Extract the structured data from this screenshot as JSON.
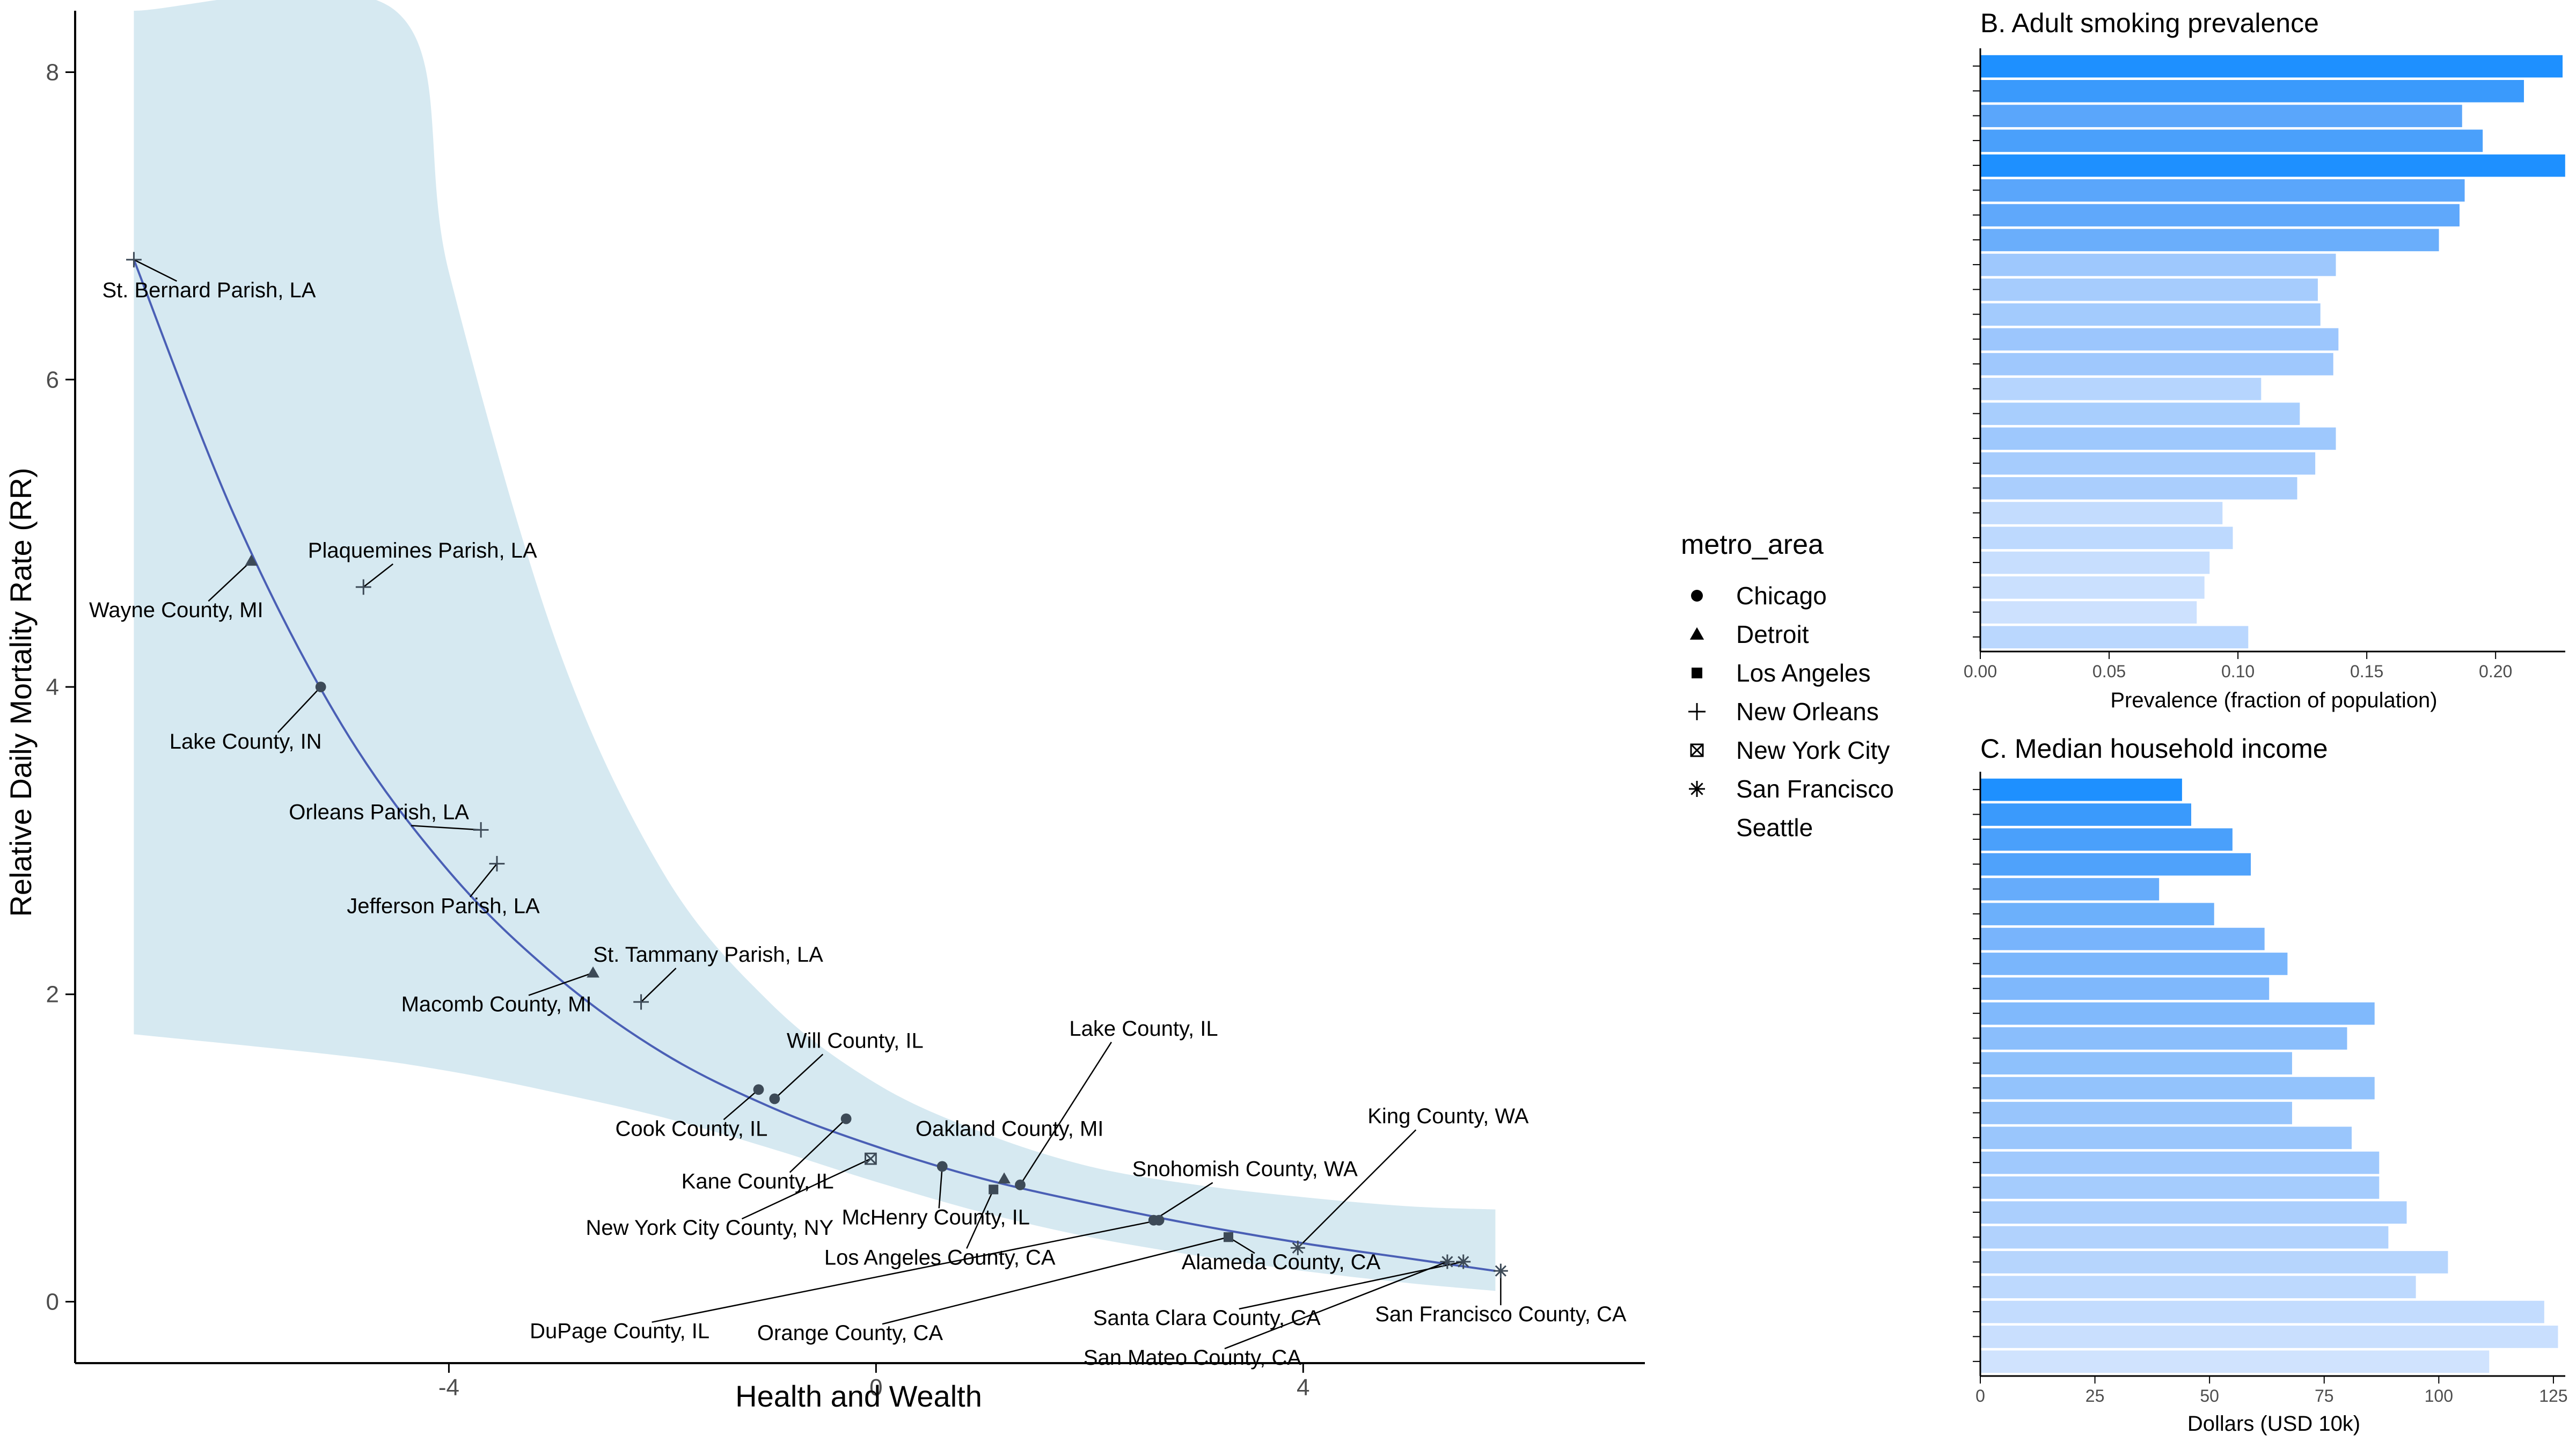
{
  "chart_data": [
    {
      "type": "scatter",
      "xlabel": "Health and Wealth",
      "ylabel": "Relative Daily Mortality Rate (RR)",
      "xlim": [
        -7.5,
        7.2
      ],
      "ylim": [
        -0.4,
        8.4
      ],
      "x_ticks": [
        -4,
        0,
        4
      ],
      "x_tick_labels": [
        "-4",
        "0",
        "4"
      ],
      "y_ticks": [
        0,
        2,
        4,
        6,
        8
      ],
      "y_tick_labels": [
        "0",
        "2",
        "4",
        "6",
        "8"
      ],
      "fit_line_color": "#4a5fb5",
      "band_color": "#d6e9f1",
      "point_color": "#3d4a57",
      "legend": {
        "title": "metro_area",
        "entries": [
          {
            "label": "Chicago",
            "shape": "circle"
          },
          {
            "label": "Detroit",
            "shape": "triangle"
          },
          {
            "label": "Los Angeles",
            "shape": "square"
          },
          {
            "label": "New Orleans",
            "shape": "plus"
          },
          {
            "label": "New York City",
            "shape": "boxed-x"
          },
          {
            "label": "San Francisco",
            "shape": "asterisk"
          },
          {
            "label": "Seattle",
            "shape": "none"
          }
        ]
      },
      "fit_curve": [
        [
          -6.95,
          6.78
        ],
        [
          -6,
          5.1
        ],
        [
          -5,
          3.75
        ],
        [
          -4,
          2.8
        ],
        [
          -3,
          2.12
        ],
        [
          -2,
          1.62
        ],
        [
          -1,
          1.27
        ],
        [
          0,
          1.01
        ],
        [
          1,
          0.8
        ],
        [
          2,
          0.64
        ],
        [
          3,
          0.5
        ],
        [
          4,
          0.38
        ],
        [
          5,
          0.28
        ],
        [
          5.8,
          0.2
        ]
      ],
      "band_upper": [
        [
          -6.95,
          8.4
        ],
        [
          -4.5,
          8.4
        ],
        [
          -4,
          6.7
        ],
        [
          -3,
          4.3
        ],
        [
          -2,
          2.8
        ],
        [
          -1,
          1.95
        ],
        [
          0,
          1.42
        ],
        [
          1,
          1.1
        ],
        [
          2,
          0.88
        ],
        [
          3,
          0.76
        ],
        [
          4,
          0.68
        ],
        [
          5,
          0.62
        ],
        [
          5.8,
          0.6
        ]
      ],
      "band_lower": [
        [
          -6.95,
          1.74
        ],
        [
          -5,
          1.6
        ],
        [
          -4,
          1.5
        ],
        [
          -3,
          1.36
        ],
        [
          -2,
          1.2
        ],
        [
          -1,
          1.0
        ],
        [
          0,
          0.78
        ],
        [
          1,
          0.58
        ],
        [
          2,
          0.42
        ],
        [
          3,
          0.3
        ],
        [
          4,
          0.2
        ],
        [
          5,
          0.12
        ],
        [
          5.8,
          0.07
        ]
      ],
      "points": [
        {
          "label": "St. Bernard Parish, LA",
          "x": -6.95,
          "y": 6.78,
          "shape": "plus"
        },
        {
          "label": "Wayne County, MI",
          "x": -5.85,
          "y": 4.82,
          "shape": "triangle"
        },
        {
          "label": "Plaquemines Parish, LA",
          "x": -4.8,
          "y": 4.65,
          "shape": "plus"
        },
        {
          "label": "Lake County, IN",
          "x": -5.2,
          "y": 4.0,
          "shape": "circle"
        },
        {
          "label": "Orleans Parish, LA",
          "x": -3.7,
          "y": 3.07,
          "shape": "plus"
        },
        {
          "label": "Jefferson Parish, LA",
          "x": -3.55,
          "y": 2.85,
          "shape": "plus"
        },
        {
          "label": "St. Tammany Parish, LA",
          "x": -2.2,
          "y": 1.95,
          "shape": "plus"
        },
        {
          "label": "Macomb County, MI",
          "x": -2.65,
          "y": 2.14,
          "shape": "triangle"
        },
        {
          "label": "Will County, IL",
          "x": -0.95,
          "y": 1.32,
          "shape": "circle"
        },
        {
          "label": "Cook County, IL",
          "x": -1.1,
          "y": 1.38,
          "shape": "circle"
        },
        {
          "label": "Kane County, IL",
          "x": -0.28,
          "y": 1.19,
          "shape": "circle"
        },
        {
          "label": "New York City County, NY",
          "x": -0.05,
          "y": 0.93,
          "shape": "boxed-x"
        },
        {
          "label": "Lake County, IL",
          "x": 1.35,
          "y": 0.76,
          "shape": "circle"
        },
        {
          "label": "Oakland County, MI",
          "x": 1.2,
          "y": 0.8,
          "shape": "triangle"
        },
        {
          "label": "McHenry County, IL",
          "x": 0.62,
          "y": 0.88,
          "shape": "circle"
        },
        {
          "label": "Los Angeles County, CA",
          "x": 1.1,
          "y": 0.73,
          "shape": "square"
        },
        {
          "label": "Snohomish County, WA",
          "x": 2.6,
          "y": 0.53,
          "shape": "circle"
        },
        {
          "label": "King County, WA",
          "x": 3.95,
          "y": 0.35,
          "shape": "asterisk"
        },
        {
          "label": "DuPage County, IL",
          "x": 2.65,
          "y": 0.53,
          "shape": "circle"
        },
        {
          "label": "Orange County, CA",
          "x": 3.3,
          "y": 0.42,
          "shape": "square"
        },
        {
          "label": "San Mateo County, CA",
          "x": 5.35,
          "y": 0.26,
          "shape": "asterisk"
        },
        {
          "label": "Alameda County, CA",
          "x": 3.3,
          "y": 0.42,
          "shape": "square"
        },
        {
          "label": "Santa Clara County, CA",
          "x": 5.5,
          "y": 0.26,
          "shape": "asterisk"
        },
        {
          "label": "San Francisco County, CA",
          "x": 5.85,
          "y": 0.2,
          "shape": "asterisk"
        }
      ]
    },
    {
      "type": "bar",
      "title": "B. Adult smoking prevalence",
      "xlabel": "Prevalence (fraction of population)",
      "orientation": "horizontal",
      "xlim": [
        0,
        0.226
      ],
      "x_ticks": [
        0,
        0.05,
        0.1,
        0.15,
        0.2
      ],
      "x_tick_labels": [
        "0.00",
        "0.05",
        "0.10",
        "0.15",
        "0.20"
      ],
      "values": [
        0.226,
        0.211,
        0.187,
        0.195,
        0.227,
        0.188,
        0.186,
        0.178,
        0.138,
        0.131,
        0.132,
        0.139,
        0.137,
        0.109,
        0.124,
        0.138,
        0.13,
        0.123,
        0.094,
        0.098,
        0.089,
        0.087,
        0.084,
        0.104
      ],
      "bar_colors": [
        "#1e90ff",
        "#3a9afc",
        "#5aa6fb",
        "#4aa0fb",
        "#1e90ff",
        "#5aa6fb",
        "#5fa8fb",
        "#6aaefb",
        "#9ec8fd",
        "#a6ccfd",
        "#a3cbfd",
        "#9cc6fd",
        "#9fc8fd",
        "#b6d5fe",
        "#a8cefd",
        "#9ec8fd",
        "#a6ccfd",
        "#aacefd",
        "#c3dcfe",
        "#bdd9fe",
        "#c7defe",
        "#cae0fe",
        "#cde1fe",
        "#bad7fe"
      ]
    },
    {
      "type": "bar",
      "title": "C. Median household income",
      "xlabel": "Dollars (USD 10k)",
      "orientation": "horizontal",
      "xlim": [
        0,
        127
      ],
      "x_ticks": [
        0,
        25,
        50,
        75,
        100,
        125
      ],
      "x_tick_labels": [
        "0",
        "25",
        "50",
        "75",
        "100",
        "125"
      ],
      "values": [
        44,
        46,
        55,
        59,
        39,
        51,
        62,
        67,
        63,
        86,
        80,
        68,
        86,
        68,
        81,
        87,
        87,
        93,
        89,
        102,
        95,
        123,
        126,
        111
      ],
      "bar_colors": [
        "#1e90ff",
        "#3a9afc",
        "#4aa0fb",
        "#4fa2fb",
        "#66acfb",
        "#6cb0fb",
        "#78b4fc",
        "#7ab6fc",
        "#7fb8fc",
        "#80b9fc",
        "#8abefc",
        "#8ec1fc",
        "#93c3fc",
        "#98c5fc",
        "#9ac6fc",
        "#a0c9fd",
        "#a5ccfd",
        "#abcffd",
        "#b1d2fd",
        "#b6d5fd",
        "#bdd9fe",
        "#c3dcfe",
        "#c9dffe",
        "#d0e3fe"
      ]
    }
  ]
}
